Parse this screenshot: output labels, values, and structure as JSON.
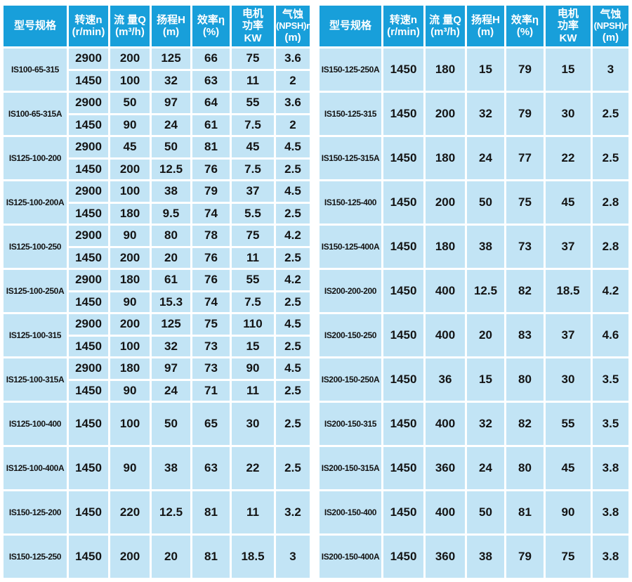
{
  "colors": {
    "header_bg": "#189fda",
    "header_text": "#ffffff",
    "row_bg": "#c2e4f5",
    "body_text": "#141414",
    "grid": "#ffffff"
  },
  "header": {
    "model": "型号规格",
    "speed_line1": "转速n",
    "speed_line2": "(r/min)",
    "flow_line1": "流 量Q",
    "flow_line2": "(m³/h)",
    "head_line1": "扬程H",
    "head_line2": "(m)",
    "eff_line1": "效率η",
    "eff_line2": "(%)",
    "power_line1": "电机",
    "power_line2": "功率",
    "power_line3": "KW",
    "npsh_line1": "气蚀",
    "npsh_line2": "(NPSH)r",
    "npsh_line3": "(m)"
  },
  "left_table": {
    "rows": [
      {
        "model": "IS100-65-315",
        "speeds": [
          {
            "n": "2900",
            "q": "200",
            "h": "125",
            "eff": "66",
            "kw": "75",
            "npsh": "3.6"
          },
          {
            "n": "1450",
            "q": "100",
            "h": "32",
            "eff": "63",
            "kw": "11",
            "npsh": "2"
          }
        ]
      },
      {
        "model": "IS100-65-315A",
        "speeds": [
          {
            "n": "2900",
            "q": "50",
            "h": "97",
            "eff": "64",
            "kw": "55",
            "npsh": "3.6"
          },
          {
            "n": "1450",
            "q": "90",
            "h": "24",
            "eff": "61",
            "kw": "7.5",
            "npsh": "2"
          }
        ]
      },
      {
        "model": "IS125-100-200",
        "speeds": [
          {
            "n": "2900",
            "q": "45",
            "h": "50",
            "eff": "81",
            "kw": "45",
            "npsh": "4.5"
          },
          {
            "n": "1450",
            "q": "200",
            "h": "12.5",
            "eff": "76",
            "kw": "7.5",
            "npsh": "2.5"
          }
        ]
      },
      {
        "model": "IS125-100-200A",
        "speeds": [
          {
            "n": "2900",
            "q": "100",
            "h": "38",
            "eff": "79",
            "kw": "37",
            "npsh": "4.5"
          },
          {
            "n": "1450",
            "q": "180",
            "h": "9.5",
            "eff": "74",
            "kw": "5.5",
            "npsh": "2.5"
          }
        ]
      },
      {
        "model": "IS125-100-250",
        "speeds": [
          {
            "n": "2900",
            "q": "90",
            "h": "80",
            "eff": "78",
            "kw": "75",
            "npsh": "4.2"
          },
          {
            "n": "1450",
            "q": "200",
            "h": "20",
            "eff": "76",
            "kw": "11",
            "npsh": "2.5"
          }
        ]
      },
      {
        "model": "IS125-100-250A",
        "speeds": [
          {
            "n": "2900",
            "q": "180",
            "h": "61",
            "eff": "76",
            "kw": "55",
            "npsh": "4.2"
          },
          {
            "n": "1450",
            "q": "90",
            "h": "15.3",
            "eff": "74",
            "kw": "7.5",
            "npsh": "2.5"
          }
        ]
      },
      {
        "model": "IS125-100-315",
        "speeds": [
          {
            "n": "2900",
            "q": "200",
            "h": "125",
            "eff": "75",
            "kw": "110",
            "npsh": "4.5"
          },
          {
            "n": "1450",
            "q": "100",
            "h": "32",
            "eff": "73",
            "kw": "15",
            "npsh": "2.5"
          }
        ]
      },
      {
        "model": "IS125-100-315A",
        "speeds": [
          {
            "n": "2900",
            "q": "180",
            "h": "97",
            "eff": "73",
            "kw": "90",
            "npsh": "4.5"
          },
          {
            "n": "1450",
            "q": "90",
            "h": "24",
            "eff": "71",
            "kw": "11",
            "npsh": "2.5"
          }
        ]
      },
      {
        "model": "IS125-100-400",
        "speeds": [
          {
            "n": "1450",
            "q": "100",
            "h": "50",
            "eff": "65",
            "kw": "30",
            "npsh": "2.5"
          }
        ]
      },
      {
        "model": "IS125-100-400A",
        "speeds": [
          {
            "n": "1450",
            "q": "90",
            "h": "38",
            "eff": "63",
            "kw": "22",
            "npsh": "2.5"
          }
        ]
      },
      {
        "model": "IS150-125-200",
        "speeds": [
          {
            "n": "1450",
            "q": "220",
            "h": "12.5",
            "eff": "81",
            "kw": "11",
            "npsh": "3.2"
          }
        ]
      },
      {
        "model": "IS150-125-250",
        "speeds": [
          {
            "n": "1450",
            "q": "200",
            "h": "20",
            "eff": "81",
            "kw": "18.5",
            "npsh": "3"
          }
        ]
      }
    ]
  },
  "right_table": {
    "rows": [
      {
        "model": "IS150-125-250A",
        "speeds": [
          {
            "n": "1450",
            "q": "180",
            "h": "15",
            "eff": "79",
            "kw": "15",
            "npsh": "3"
          }
        ]
      },
      {
        "model": "IS150-125-315",
        "speeds": [
          {
            "n": "1450",
            "q": "200",
            "h": "32",
            "eff": "79",
            "kw": "30",
            "npsh": "2.5"
          }
        ]
      },
      {
        "model": "IS150-125-315A",
        "speeds": [
          {
            "n": "1450",
            "q": "180",
            "h": "24",
            "eff": "77",
            "kw": "22",
            "npsh": "2.5"
          }
        ]
      },
      {
        "model": "IS150-125-400",
        "speeds": [
          {
            "n": "1450",
            "q": "200",
            "h": "50",
            "eff": "75",
            "kw": "45",
            "npsh": "2.8"
          }
        ]
      },
      {
        "model": "IS150-125-400A",
        "speeds": [
          {
            "n": "1450",
            "q": "180",
            "h": "38",
            "eff": "73",
            "kw": "37",
            "npsh": "2.8"
          }
        ]
      },
      {
        "model": "IS200-200-200",
        "speeds": [
          {
            "n": "1450",
            "q": "400",
            "h": "12.5",
            "eff": "82",
            "kw": "18.5",
            "npsh": "4.2"
          }
        ]
      },
      {
        "model": "IS200-150-250",
        "speeds": [
          {
            "n": "1450",
            "q": "400",
            "h": "20",
            "eff": "83",
            "kw": "37",
            "npsh": "4.6"
          }
        ]
      },
      {
        "model": "IS200-150-250A",
        "speeds": [
          {
            "n": "1450",
            "q": "36",
            "h": "15",
            "eff": "80",
            "kw": "30",
            "npsh": "3.5"
          }
        ]
      },
      {
        "model": "IS200-150-315",
        "speeds": [
          {
            "n": "1450",
            "q": "400",
            "h": "32",
            "eff": "82",
            "kw": "55",
            "npsh": "3.5"
          }
        ]
      },
      {
        "model": "IS200-150-315A",
        "speeds": [
          {
            "n": "1450",
            "q": "360",
            "h": "24",
            "eff": "80",
            "kw": "45",
            "npsh": "3.8"
          }
        ]
      },
      {
        "model": "IS200-150-400",
        "speeds": [
          {
            "n": "1450",
            "q": "400",
            "h": "50",
            "eff": "81",
            "kw": "90",
            "npsh": "3.8"
          }
        ]
      },
      {
        "model": "IS200-150-400A",
        "speeds": [
          {
            "n": "1450",
            "q": "360",
            "h": "38",
            "eff": "79",
            "kw": "75",
            "npsh": "3.8"
          }
        ]
      }
    ]
  }
}
